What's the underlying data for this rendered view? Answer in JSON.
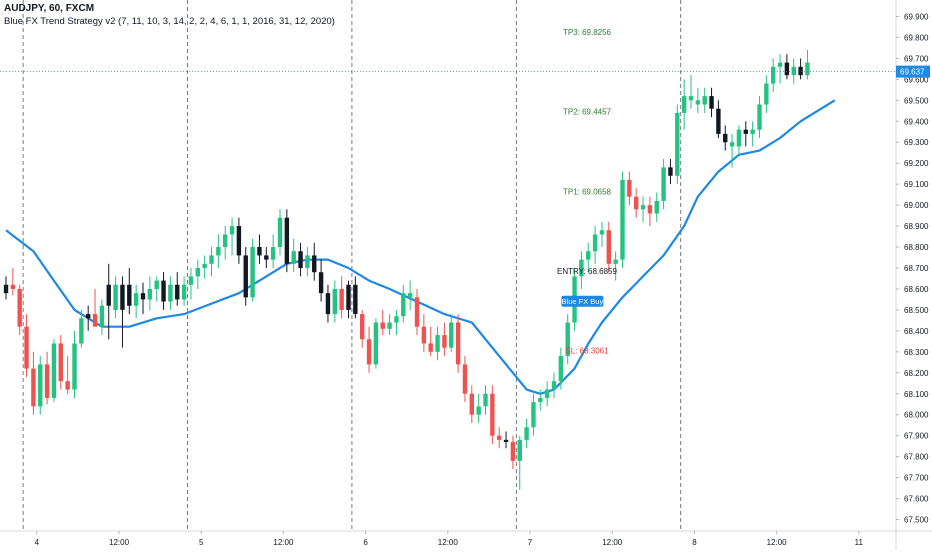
{
  "header": {
    "symbol_line": "AUDJPY, 60, FXCM",
    "indicator_line": "Blue FX Trend Strategy v2 (7, 11, 10, 3, 14, 2, 2, 4, 6, 1, 1, 2016, 31, 12, 2020)"
  },
  "colors": {
    "up": "#26c281",
    "down": "#ef5350",
    "neutral": "#131722",
    "trend_line": "#1e88e5",
    "price_badge": "#1e88e5",
    "tp": "#2e7d32",
    "sl": "#e53935",
    "entry": "#131722"
  },
  "chart_data": {
    "type": "candlestick",
    "y_axis": {
      "min": 67.45,
      "max": 69.95,
      "ticks": [
        67.5,
        67.6,
        67.7,
        67.8,
        67.9,
        68.0,
        68.1,
        68.2,
        68.3,
        68.4,
        68.5,
        68.6,
        68.7,
        68.8,
        68.9,
        69.0,
        69.1,
        69.2,
        69.3,
        69.4,
        69.5,
        69.6,
        69.7,
        69.8,
        69.9
      ],
      "tick_labels": [
        "67.500",
        "67.600",
        "67.700",
        "67.800",
        "67.900",
        "68.000",
        "68.100",
        "68.200",
        "68.300",
        "68.400",
        "68.500",
        "68.600",
        "68.700",
        "68.800",
        "68.900",
        "69.000",
        "69.100",
        "69.200",
        "69.300",
        "69.400",
        "69.500",
        "69.600",
        "69.700",
        "69.800",
        "69.900"
      ]
    },
    "x_axis": {
      "bar_count": 121,
      "ticks": [
        {
          "bar": 5,
          "label": "4"
        },
        {
          "bar": 17,
          "label": "12:00"
        },
        {
          "bar": 29,
          "label": "5"
        },
        {
          "bar": 41,
          "label": "12:00"
        },
        {
          "bar": 53,
          "label": "6"
        },
        {
          "bar": 65,
          "label": "12:00"
        },
        {
          "bar": 77,
          "label": "7"
        },
        {
          "bar": 89,
          "label": "12:00"
        },
        {
          "bar": 101,
          "label": "8"
        },
        {
          "bar": 113,
          "label": "12:00"
        },
        {
          "bar": 125,
          "label": "11"
        }
      ],
      "session_separators": [
        3,
        27,
        51,
        75,
        99
      ]
    },
    "current_price": {
      "value": 69.637,
      "label": "69.637"
    },
    "annotations": [
      {
        "label": "TP3: 69.8256",
        "value": 69.8256,
        "kind": "tp"
      },
      {
        "label": "TP2: 69.4457",
        "value": 69.4457,
        "kind": "tp"
      },
      {
        "label": "TP1: 69.0658",
        "value": 69.0658,
        "kind": "tp"
      },
      {
        "label": "ENTRY: 68.6859",
        "value": 68.6859,
        "kind": "entry"
      },
      {
        "label": "SL: 68.3061",
        "value": 68.3061,
        "kind": "sl"
      }
    ],
    "signal": {
      "label": "Blue FX Buy",
      "bar": 84,
      "price": 68.52
    },
    "candles": [
      {
        "o": 68.58,
        "h": 68.66,
        "l": 68.55,
        "c": 68.62,
        "t": "neutral"
      },
      {
        "o": 68.62,
        "h": 68.7,
        "l": 68.57,
        "c": 68.6,
        "t": "down"
      },
      {
        "o": 68.6,
        "h": 68.62,
        "l": 68.38,
        "c": 68.42,
        "t": "down"
      },
      {
        "o": 68.42,
        "h": 68.48,
        "l": 68.18,
        "c": 68.22,
        "t": "down"
      },
      {
        "o": 68.22,
        "h": 68.3,
        "l": 68.0,
        "c": 68.04,
        "t": "down"
      },
      {
        "o": 68.04,
        "h": 68.28,
        "l": 68.0,
        "c": 68.24,
        "t": "up"
      },
      {
        "o": 68.24,
        "h": 68.3,
        "l": 68.05,
        "c": 68.08,
        "t": "down"
      },
      {
        "o": 68.08,
        "h": 68.36,
        "l": 68.06,
        "c": 68.34,
        "t": "up"
      },
      {
        "o": 68.34,
        "h": 68.38,
        "l": 68.12,
        "c": 68.16,
        "t": "down"
      },
      {
        "o": 68.16,
        "h": 68.28,
        "l": 68.1,
        "c": 68.12,
        "t": "down"
      },
      {
        "o": 68.12,
        "h": 68.4,
        "l": 68.08,
        "c": 68.34,
        "t": "up"
      },
      {
        "o": 68.34,
        "h": 68.5,
        "l": 68.32,
        "c": 68.46,
        "t": "up"
      },
      {
        "o": 68.46,
        "h": 68.52,
        "l": 68.4,
        "c": 68.48,
        "t": "neutral"
      },
      {
        "o": 68.48,
        "h": 68.6,
        "l": 68.44,
        "c": 68.42,
        "t": "down"
      },
      {
        "o": 68.42,
        "h": 68.55,
        "l": 68.38,
        "c": 68.52,
        "t": "up"
      },
      {
        "o": 68.52,
        "h": 68.72,
        "l": 68.36,
        "c": 68.62,
        "t": "neutral"
      },
      {
        "o": 68.62,
        "h": 68.66,
        "l": 68.46,
        "c": 68.5,
        "t": "up"
      },
      {
        "o": 68.5,
        "h": 68.66,
        "l": 68.32,
        "c": 68.62,
        "t": "neutral"
      },
      {
        "o": 68.62,
        "h": 68.7,
        "l": 68.48,
        "c": 68.52,
        "t": "neutral"
      },
      {
        "o": 68.52,
        "h": 68.62,
        "l": 68.46,
        "c": 68.58,
        "t": "up"
      },
      {
        "o": 68.58,
        "h": 68.63,
        "l": 68.48,
        "c": 68.55,
        "t": "neutral"
      },
      {
        "o": 68.55,
        "h": 68.66,
        "l": 68.5,
        "c": 68.6,
        "t": "up"
      },
      {
        "o": 68.6,
        "h": 68.66,
        "l": 68.54,
        "c": 68.64,
        "t": "up"
      },
      {
        "o": 68.64,
        "h": 68.68,
        "l": 68.5,
        "c": 68.54,
        "t": "neutral"
      },
      {
        "o": 68.54,
        "h": 68.66,
        "l": 68.5,
        "c": 68.62,
        "t": "up"
      },
      {
        "o": 68.62,
        "h": 68.68,
        "l": 68.52,
        "c": 68.55,
        "t": "neutral"
      },
      {
        "o": 68.55,
        "h": 68.66,
        "l": 68.52,
        "c": 68.62,
        "t": "up"
      },
      {
        "o": 68.62,
        "h": 68.7,
        "l": 68.55,
        "c": 68.66,
        "t": "up"
      },
      {
        "o": 68.66,
        "h": 68.74,
        "l": 68.6,
        "c": 68.7,
        "t": "up"
      },
      {
        "o": 68.7,
        "h": 68.76,
        "l": 68.65,
        "c": 68.72,
        "t": "up"
      },
      {
        "o": 68.72,
        "h": 68.8,
        "l": 68.66,
        "c": 68.76,
        "t": "up"
      },
      {
        "o": 68.76,
        "h": 68.86,
        "l": 68.7,
        "c": 68.8,
        "t": "up"
      },
      {
        "o": 68.8,
        "h": 68.9,
        "l": 68.74,
        "c": 68.86,
        "t": "up"
      },
      {
        "o": 68.86,
        "h": 68.94,
        "l": 68.76,
        "c": 68.9,
        "t": "up"
      },
      {
        "o": 68.9,
        "h": 68.94,
        "l": 68.72,
        "c": 68.76,
        "t": "neutral"
      },
      {
        "o": 68.76,
        "h": 68.8,
        "l": 68.52,
        "c": 68.56,
        "t": "neutral"
      },
      {
        "o": 68.56,
        "h": 68.84,
        "l": 68.54,
        "c": 68.8,
        "t": "up"
      },
      {
        "o": 68.8,
        "h": 68.86,
        "l": 68.72,
        "c": 68.76,
        "t": "neutral"
      },
      {
        "o": 68.76,
        "h": 68.8,
        "l": 68.7,
        "c": 68.74,
        "t": "neutral"
      },
      {
        "o": 68.74,
        "h": 68.86,
        "l": 68.7,
        "c": 68.8,
        "t": "up"
      },
      {
        "o": 68.8,
        "h": 68.98,
        "l": 68.76,
        "c": 68.94,
        "t": "up"
      },
      {
        "o": 68.94,
        "h": 68.98,
        "l": 68.68,
        "c": 68.72,
        "t": "neutral"
      },
      {
        "o": 68.72,
        "h": 68.84,
        "l": 68.68,
        "c": 68.78,
        "t": "up"
      },
      {
        "o": 68.78,
        "h": 68.82,
        "l": 68.66,
        "c": 68.7,
        "t": "neutral"
      },
      {
        "o": 68.7,
        "h": 68.8,
        "l": 68.66,
        "c": 68.76,
        "t": "up"
      },
      {
        "o": 68.76,
        "h": 68.82,
        "l": 68.64,
        "c": 68.68,
        "t": "neutral"
      },
      {
        "o": 68.68,
        "h": 68.74,
        "l": 68.54,
        "c": 68.58,
        "t": "neutral"
      },
      {
        "o": 68.58,
        "h": 68.62,
        "l": 68.44,
        "c": 68.48,
        "t": "neutral"
      },
      {
        "o": 68.48,
        "h": 68.64,
        "l": 68.44,
        "c": 68.6,
        "t": "up"
      },
      {
        "o": 68.6,
        "h": 68.66,
        "l": 68.46,
        "c": 68.5,
        "t": "down"
      },
      {
        "o": 68.5,
        "h": 68.64,
        "l": 68.46,
        "c": 68.62,
        "t": "neutral"
      },
      {
        "o": 68.62,
        "h": 68.66,
        "l": 68.46,
        "c": 68.48,
        "t": "neutral"
      },
      {
        "o": 68.48,
        "h": 68.5,
        "l": 68.32,
        "c": 68.36,
        "t": "down"
      },
      {
        "o": 68.36,
        "h": 68.42,
        "l": 68.2,
        "c": 68.24,
        "t": "down"
      },
      {
        "o": 68.24,
        "h": 68.46,
        "l": 68.22,
        "c": 68.44,
        "t": "up"
      },
      {
        "o": 68.44,
        "h": 68.5,
        "l": 68.38,
        "c": 68.41,
        "t": "down"
      },
      {
        "o": 68.41,
        "h": 68.48,
        "l": 68.38,
        "c": 68.44,
        "t": "up"
      },
      {
        "o": 68.44,
        "h": 68.5,
        "l": 68.38,
        "c": 68.47,
        "t": "up"
      },
      {
        "o": 68.47,
        "h": 68.62,
        "l": 68.44,
        "c": 68.58,
        "t": "up"
      },
      {
        "o": 68.58,
        "h": 68.64,
        "l": 68.5,
        "c": 68.56,
        "t": "up"
      },
      {
        "o": 68.56,
        "h": 68.6,
        "l": 68.38,
        "c": 68.42,
        "t": "down"
      },
      {
        "o": 68.42,
        "h": 68.48,
        "l": 68.3,
        "c": 68.34,
        "t": "down"
      },
      {
        "o": 68.34,
        "h": 68.42,
        "l": 68.28,
        "c": 68.3,
        "t": "down"
      },
      {
        "o": 68.3,
        "h": 68.42,
        "l": 68.26,
        "c": 68.38,
        "t": "up"
      },
      {
        "o": 68.38,
        "h": 68.44,
        "l": 68.28,
        "c": 68.32,
        "t": "down"
      },
      {
        "o": 68.32,
        "h": 68.48,
        "l": 68.3,
        "c": 68.44,
        "t": "up"
      },
      {
        "o": 68.44,
        "h": 68.48,
        "l": 68.2,
        "c": 68.24,
        "t": "down"
      },
      {
        "o": 68.24,
        "h": 68.28,
        "l": 68.06,
        "c": 68.1,
        "t": "down"
      },
      {
        "o": 68.1,
        "h": 68.14,
        "l": 67.96,
        "c": 68.0,
        "t": "down"
      },
      {
        "o": 68.0,
        "h": 68.1,
        "l": 67.96,
        "c": 68.04,
        "t": "up"
      },
      {
        "o": 68.04,
        "h": 68.14,
        "l": 68.0,
        "c": 68.1,
        "t": "up"
      },
      {
        "o": 68.1,
        "h": 68.14,
        "l": 67.86,
        "c": 67.9,
        "t": "down"
      },
      {
        "o": 67.9,
        "h": 67.94,
        "l": 67.84,
        "c": 67.88,
        "t": "down"
      },
      {
        "o": 67.88,
        "h": 67.92,
        "l": 67.84,
        "c": 67.87,
        "t": "neutral"
      },
      {
        "o": 67.87,
        "h": 67.9,
        "l": 67.74,
        "c": 67.78,
        "t": "down"
      },
      {
        "o": 67.78,
        "h": 67.9,
        "l": 67.64,
        "c": 67.88,
        "t": "up"
      },
      {
        "o": 67.88,
        "h": 67.98,
        "l": 67.84,
        "c": 67.94,
        "t": "up"
      },
      {
        "o": 67.94,
        "h": 68.1,
        "l": 67.9,
        "c": 68.06,
        "t": "up"
      },
      {
        "o": 68.06,
        "h": 68.12,
        "l": 68.02,
        "c": 68.08,
        "t": "up"
      },
      {
        "o": 68.08,
        "h": 68.16,
        "l": 68.04,
        "c": 68.12,
        "t": "up"
      },
      {
        "o": 68.12,
        "h": 68.2,
        "l": 68.08,
        "c": 68.16,
        "t": "up"
      },
      {
        "o": 68.16,
        "h": 68.32,
        "l": 68.12,
        "c": 68.28,
        "t": "up"
      },
      {
        "o": 68.28,
        "h": 68.48,
        "l": 68.24,
        "c": 68.44,
        "t": "up"
      },
      {
        "o": 68.44,
        "h": 68.7,
        "l": 68.4,
        "c": 68.66,
        "t": "up"
      },
      {
        "o": 68.66,
        "h": 68.78,
        "l": 68.6,
        "c": 68.74,
        "t": "up"
      },
      {
        "o": 68.74,
        "h": 68.82,
        "l": 68.68,
        "c": 68.78,
        "t": "up"
      },
      {
        "o": 68.78,
        "h": 68.9,
        "l": 68.72,
        "c": 68.86,
        "t": "up"
      },
      {
        "o": 68.86,
        "h": 68.92,
        "l": 68.8,
        "c": 68.88,
        "t": "up"
      },
      {
        "o": 68.88,
        "h": 68.92,
        "l": 68.68,
        "c": 68.72,
        "t": "down"
      },
      {
        "o": 68.72,
        "h": 68.78,
        "l": 68.64,
        "c": 68.74,
        "t": "up"
      },
      {
        "o": 68.74,
        "h": 69.16,
        "l": 68.7,
        "c": 69.12,
        "t": "up"
      },
      {
        "o": 69.12,
        "h": 69.16,
        "l": 69.0,
        "c": 69.04,
        "t": "down"
      },
      {
        "o": 69.04,
        "h": 69.08,
        "l": 68.94,
        "c": 68.98,
        "t": "down"
      },
      {
        "o": 68.98,
        "h": 69.04,
        "l": 68.92,
        "c": 69.0,
        "t": "up"
      },
      {
        "o": 69.0,
        "h": 69.04,
        "l": 68.9,
        "c": 68.96,
        "t": "down"
      },
      {
        "o": 68.96,
        "h": 69.06,
        "l": 68.92,
        "c": 69.02,
        "t": "up"
      },
      {
        "o": 69.02,
        "h": 69.22,
        "l": 68.98,
        "c": 69.18,
        "t": "up"
      },
      {
        "o": 69.18,
        "h": 69.22,
        "l": 69.1,
        "c": 69.14,
        "t": "neutral"
      },
      {
        "o": 69.14,
        "h": 69.48,
        "l": 69.1,
        "c": 69.44,
        "t": "up"
      },
      {
        "o": 69.44,
        "h": 69.6,
        "l": 69.36,
        "c": 69.52,
        "t": "up"
      },
      {
        "o": 69.52,
        "h": 69.62,
        "l": 69.46,
        "c": 69.5,
        "t": "up"
      },
      {
        "o": 69.5,
        "h": 69.56,
        "l": 69.44,
        "c": 69.48,
        "t": "up"
      },
      {
        "o": 69.48,
        "h": 69.56,
        "l": 69.44,
        "c": 69.52,
        "t": "up"
      },
      {
        "o": 69.52,
        "h": 69.56,
        "l": 69.42,
        "c": 69.46,
        "t": "neutral"
      },
      {
        "o": 69.46,
        "h": 69.5,
        "l": 69.32,
        "c": 69.34,
        "t": "neutral"
      },
      {
        "o": 69.34,
        "h": 69.38,
        "l": 69.26,
        "c": 69.3,
        "t": "neutral"
      },
      {
        "o": 69.3,
        "h": 69.34,
        "l": 69.18,
        "c": 69.28,
        "t": "up"
      },
      {
        "o": 69.28,
        "h": 69.38,
        "l": 69.24,
        "c": 69.36,
        "t": "up"
      },
      {
        "o": 69.36,
        "h": 69.4,
        "l": 69.28,
        "c": 69.34,
        "t": "neutral"
      },
      {
        "o": 69.34,
        "h": 69.4,
        "l": 69.28,
        "c": 69.36,
        "t": "up"
      },
      {
        "o": 69.36,
        "h": 69.52,
        "l": 69.32,
        "c": 69.48,
        "t": "up"
      },
      {
        "o": 69.48,
        "h": 69.62,
        "l": 69.44,
        "c": 69.58,
        "t": "up"
      },
      {
        "o": 69.58,
        "h": 69.7,
        "l": 69.54,
        "c": 69.66,
        "t": "up"
      },
      {
        "o": 69.66,
        "h": 69.72,
        "l": 69.58,
        "c": 69.68,
        "t": "up"
      },
      {
        "o": 69.68,
        "h": 69.72,
        "l": 69.6,
        "c": 69.62,
        "t": "neutral"
      },
      {
        "o": 69.62,
        "h": 69.7,
        "l": 69.58,
        "c": 69.66,
        "t": "up"
      },
      {
        "o": 69.66,
        "h": 69.7,
        "l": 69.6,
        "c": 69.62,
        "t": "neutral"
      },
      {
        "o": 69.62,
        "h": 69.74,
        "l": 69.6,
        "c": 69.68,
        "t": "up"
      }
    ],
    "trend_line": [
      [
        0,
        68.88
      ],
      [
        4,
        68.78
      ],
      [
        7,
        68.64
      ],
      [
        10,
        68.5
      ],
      [
        14,
        68.42
      ],
      [
        18,
        68.42
      ],
      [
        22,
        68.46
      ],
      [
        26,
        68.48
      ],
      [
        30,
        68.53
      ],
      [
        34,
        68.58
      ],
      [
        38,
        68.66
      ],
      [
        41,
        68.72
      ],
      [
        44,
        68.74
      ],
      [
        47,
        68.74
      ],
      [
        50,
        68.7
      ],
      [
        53,
        68.64
      ],
      [
        56,
        68.6
      ],
      [
        60,
        68.54
      ],
      [
        64,
        68.48
      ],
      [
        68,
        68.44
      ],
      [
        71,
        68.32
      ],
      [
        74,
        68.2
      ],
      [
        76,
        68.12
      ],
      [
        78,
        68.1
      ],
      [
        80,
        68.12
      ],
      [
        83,
        68.22
      ],
      [
        85,
        68.34
      ],
      [
        87,
        68.44
      ],
      [
        90,
        68.56
      ],
      [
        93,
        68.66
      ],
      [
        96,
        68.76
      ],
      [
        99,
        68.9
      ],
      [
        101,
        69.04
      ],
      [
        104,
        69.16
      ],
      [
        107,
        69.24
      ],
      [
        110,
        69.26
      ],
      [
        113,
        69.32
      ],
      [
        116,
        69.4
      ],
      [
        119,
        69.46
      ],
      [
        121,
        69.5
      ]
    ]
  }
}
